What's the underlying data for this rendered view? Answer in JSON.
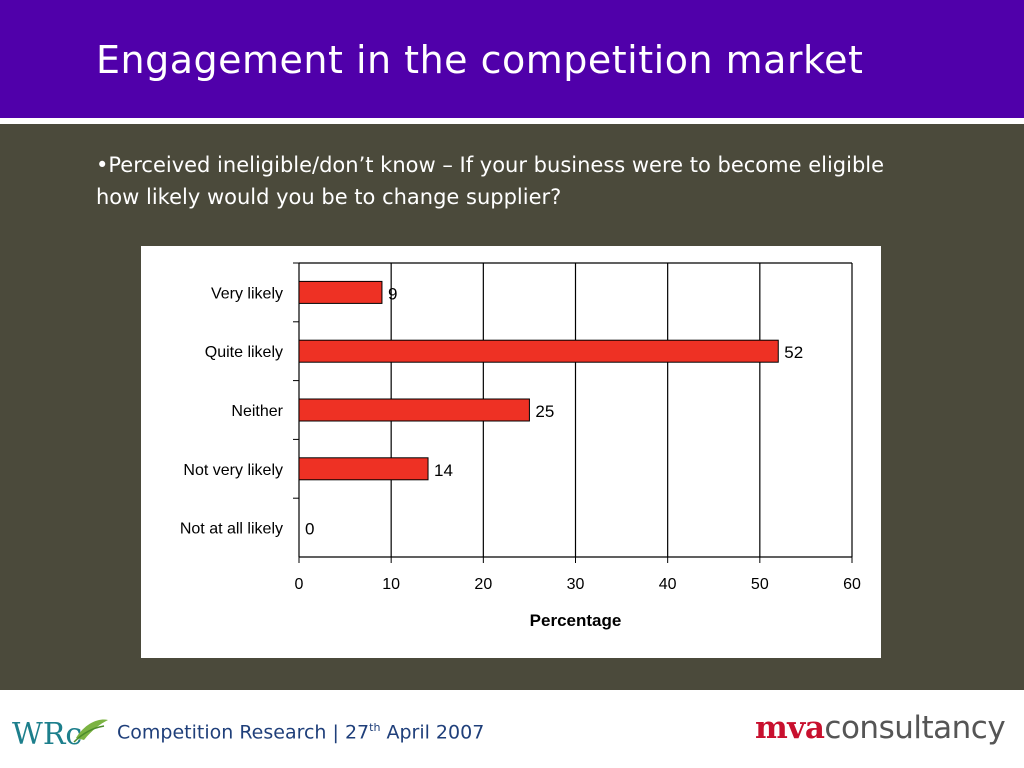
{
  "header": {
    "title": "Engagement in the competition market"
  },
  "question": "•Perceived ineligible/don’t know – If your business were to become eligible how likely would you be to change supplier?",
  "chart_data": {
    "type": "bar",
    "orientation": "horizontal",
    "categories": [
      "Very likely",
      "Quite likely",
      "Neither",
      "Not very likely",
      "Not at all likely"
    ],
    "values": [
      9,
      52,
      25,
      14,
      0
    ],
    "data_labels": [
      "9",
      "52",
      "25",
      "14",
      "0"
    ],
    "xlabel": "Percentage",
    "xlim": [
      0,
      60
    ],
    "xticks": [
      0,
      10,
      20,
      30,
      40,
      50,
      60
    ],
    "grid": "vertical",
    "bar_color": "#ee3124"
  },
  "footer": {
    "logo_text": "WRc",
    "text_main": "Competition Research | 27",
    "text_sup": "th",
    "text_end": " April 2007",
    "brand_mva": "mva",
    "brand_consultancy": "consultancy"
  },
  "colors": {
    "header": "#5000aa",
    "content_bg": "#4b4a3b",
    "footer_text": "#1f3f7a",
    "brand_red": "#c8102e"
  }
}
